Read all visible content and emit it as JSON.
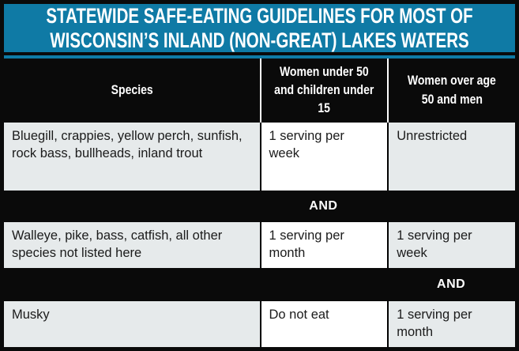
{
  "title": {
    "line1": "STATEWIDE SAFE-EATING GUIDELINES FOR MOST OF",
    "line2": "WISCONSIN’S INLAND (NON-GREAT) LAKES WATERS"
  },
  "table": {
    "headers": [
      {
        "label": "Species",
        "lines": [
          "Species"
        ]
      },
      {
        "label": "Women under 50 and children under 15",
        "lines": [
          "Women under 50",
          "and children under",
          "15"
        ]
      },
      {
        "label": "Women over age 50 and men",
        "lines": [
          "Women over age",
          "50 and men"
        ]
      }
    ],
    "and_label": "AND",
    "rows": [
      {
        "species": "Bluegill, crappies, yellow perch, sunfish, rock bass, bullheads, inland trout",
        "women_under_50": "1 serving per week",
        "women_over_50_men": "Unrestricted"
      },
      {
        "species": "Walleye, pike, bass, catfish, all other species not listed here",
        "women_under_50": "1 serving per month",
        "women_over_50_men": "1 serving per week"
      },
      {
        "species": "Musky",
        "women_under_50": "Do not eat",
        "women_over_50_men": "1 serving per month"
      }
    ]
  },
  "colors": {
    "banner_blue": "#0f7aa5",
    "header_black": "#0a0a0a",
    "cell_gray": "#e6eaeb",
    "cell_white": "#ffffff",
    "text_dark": "#1b1b1b",
    "text_white": "#ffffff"
  }
}
